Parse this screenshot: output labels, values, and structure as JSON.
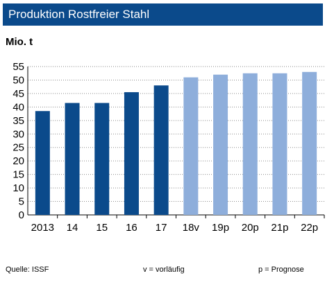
{
  "header": {
    "title": "Produktion Rostfreier Stahl"
  },
  "unit_label": "Mio. t",
  "footer": {
    "source": "Quelle:  ISSF",
    "legend_v": "v = vorläufig",
    "legend_p": "p = Prognose"
  },
  "colors": {
    "title_background": "#0b4a8b",
    "actual_bar": "#0b4a8b",
    "forecast_bar": "#8eaedb",
    "grid": "#8a8a8a"
  },
  "chart_data": {
    "type": "bar",
    "categories": [
      "2013",
      "14",
      "15",
      "16",
      "17",
      "18v",
      "19p",
      "20p",
      "21p",
      "22p"
    ],
    "values": [
      38.5,
      41.5,
      41.5,
      45.5,
      48,
      51,
      52,
      52.5,
      52.5,
      53
    ],
    "bar_kind": [
      "actual",
      "actual",
      "actual",
      "actual",
      "actual",
      "forecast",
      "forecast",
      "forecast",
      "forecast",
      "forecast"
    ],
    "title": "Produktion Rostfreier Stahl",
    "ylabel": "Mio. t",
    "ylim": [
      0,
      55
    ],
    "yticks": [
      0,
      5,
      10,
      15,
      20,
      25,
      30,
      35,
      40,
      45,
      50,
      55
    ],
    "grid": true
  }
}
